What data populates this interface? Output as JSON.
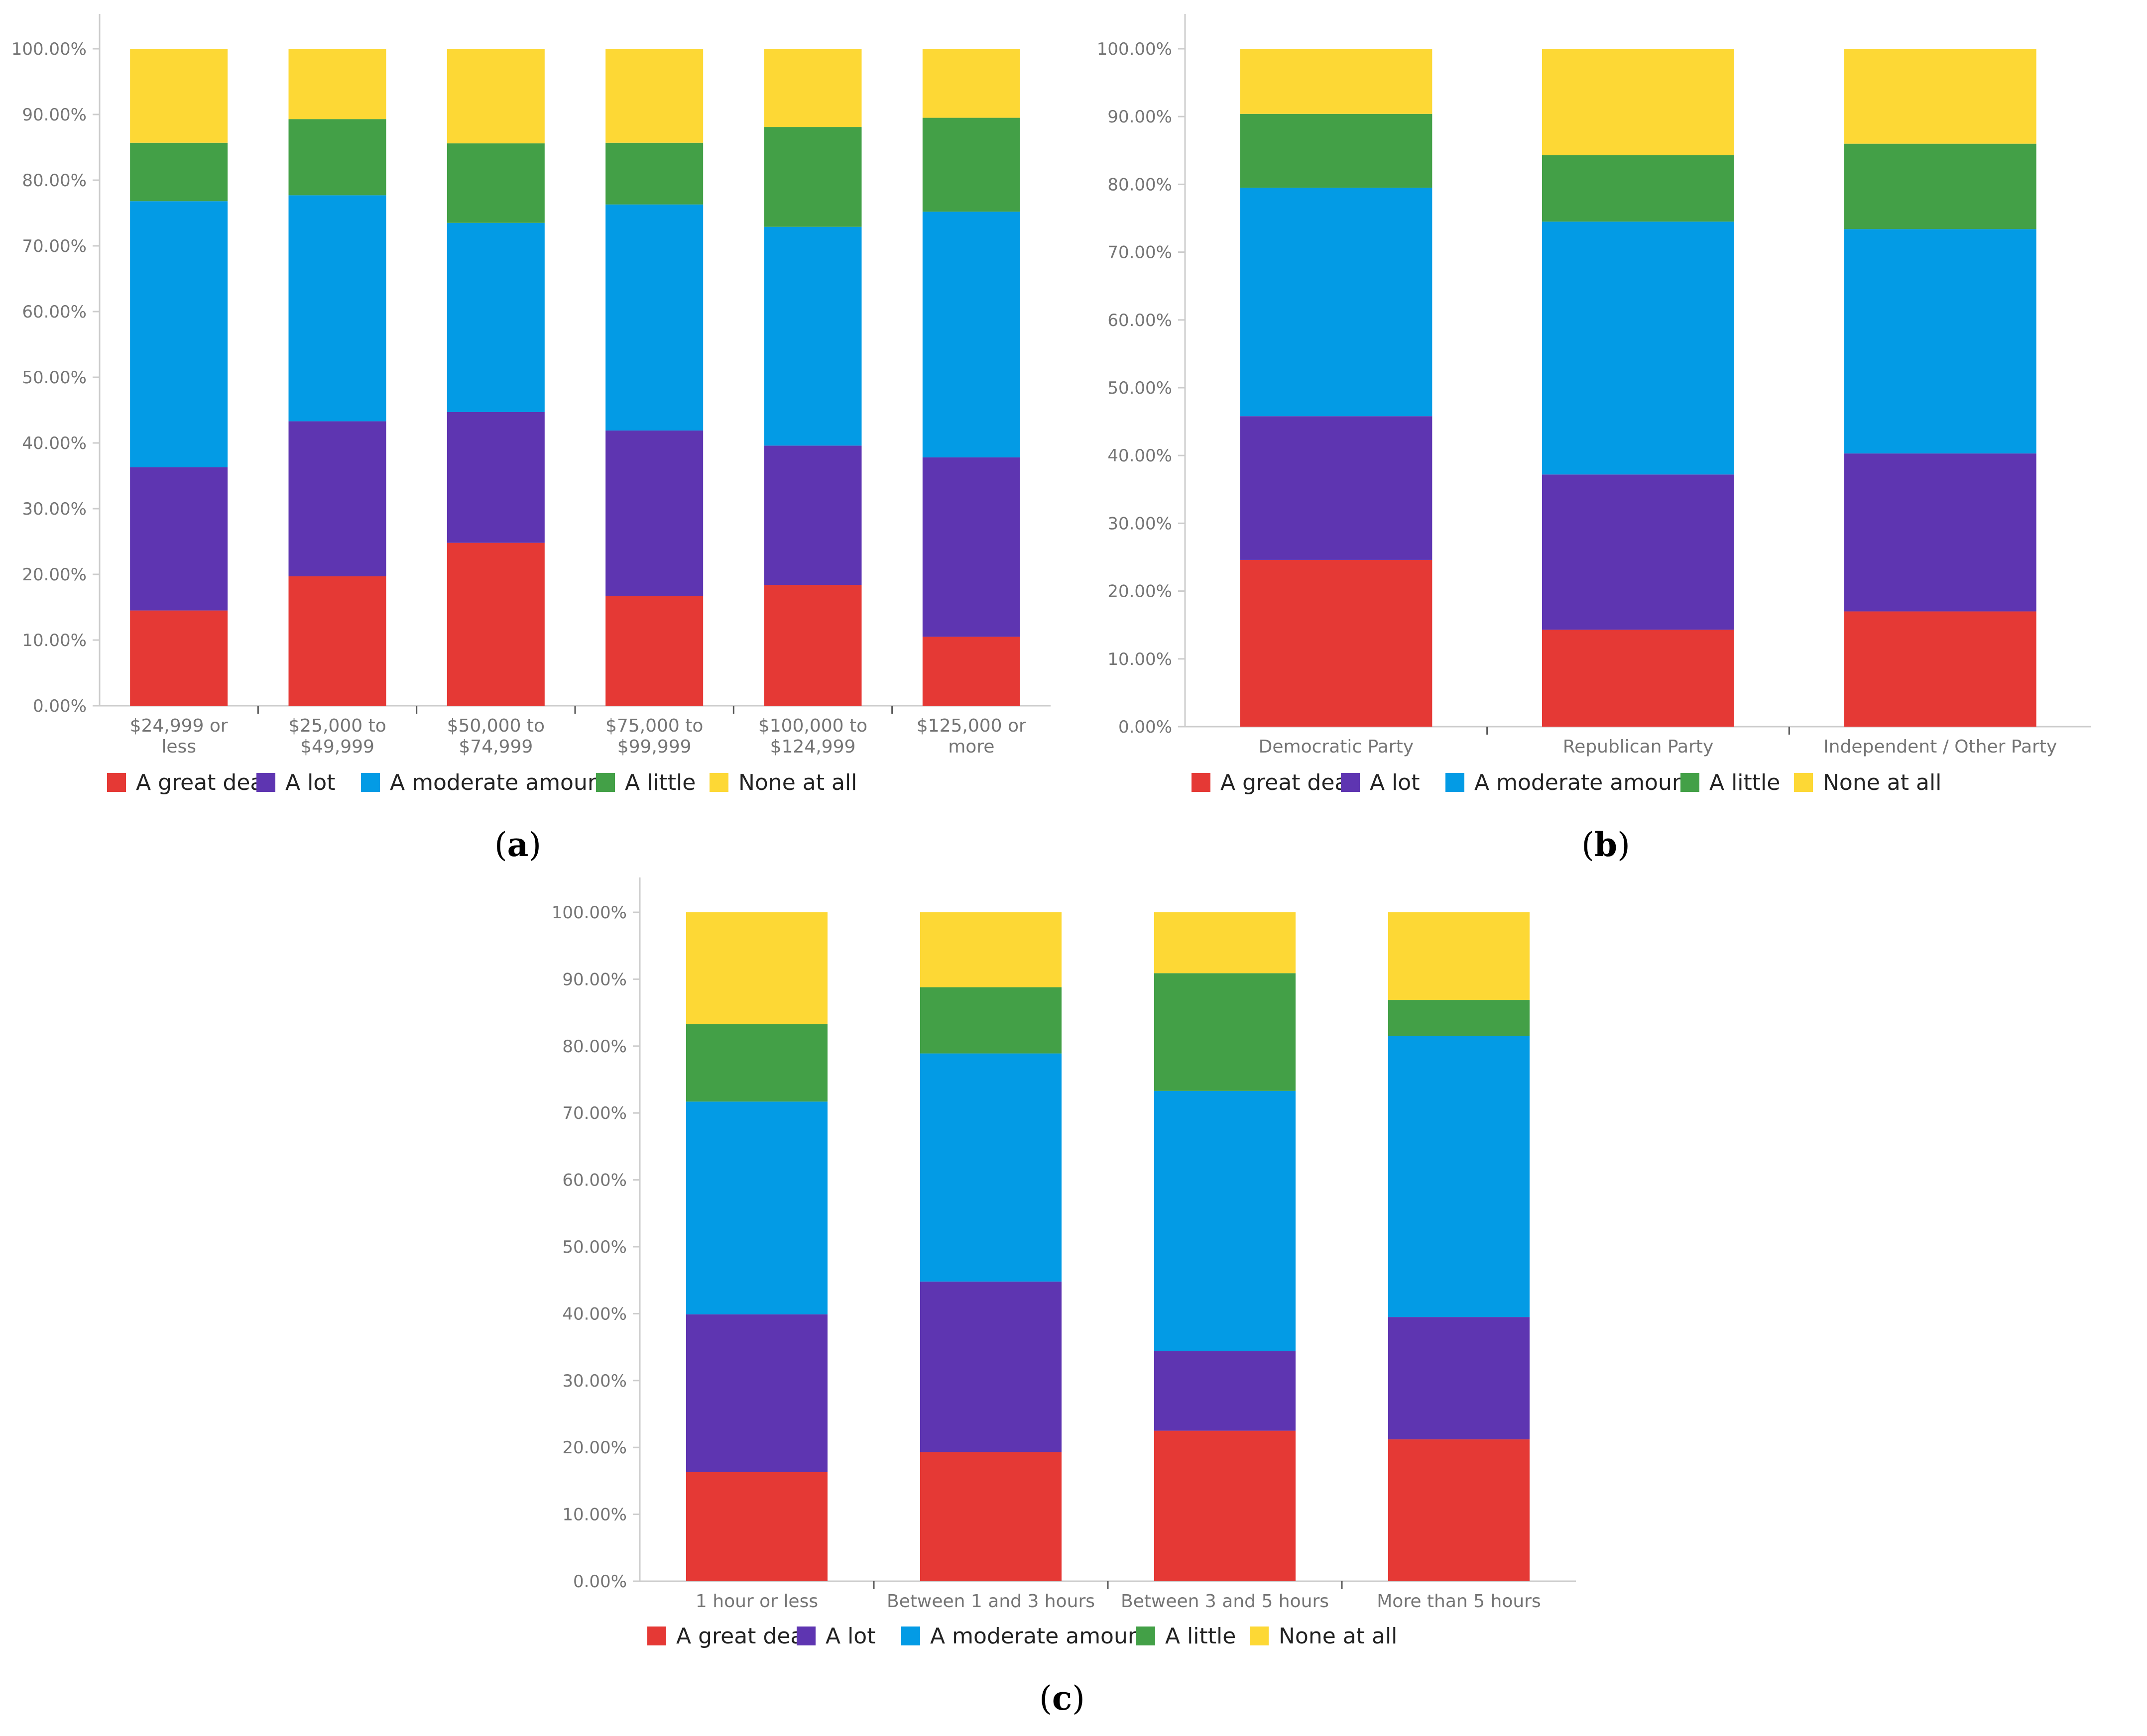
{
  "colors": {
    "A great deal": "#e53935",
    "A lot": "#5e35b1",
    "A moderate amount": "#039be5",
    "A little": "#43a047",
    "None at all": "#fdd835"
  },
  "legend": [
    "A great deal",
    "A lot",
    "A moderate amount",
    "A little",
    "None at all"
  ],
  "y_ticks": [
    "0.00%",
    "10.00%",
    "20.00%",
    "30.00%",
    "40.00%",
    "50.00%",
    "60.00%",
    "70.00%",
    "80.00%",
    "90.00%",
    "100.00%"
  ],
  "chart_data": [
    {
      "type": "bar",
      "stacked": true,
      "panel_label": "a",
      "categories": [
        [
          "$24,999 or",
          "less"
        ],
        [
          "$25,000 to",
          "$49,999"
        ],
        [
          "$50,000 to",
          "$74,999"
        ],
        [
          "$75,000 to",
          "$99,999"
        ],
        [
          "$100,000 to",
          "$124,999"
        ],
        [
          "$125,000 or",
          "more"
        ]
      ],
      "series": [
        {
          "name": "A great deal",
          "values": [
            14.5,
            19.7,
            24.8,
            16.7,
            18.4,
            10.5
          ]
        },
        {
          "name": "A lot",
          "values": [
            21.8,
            23.6,
            19.9,
            25.2,
            21.2,
            27.3
          ]
        },
        {
          "name": "A moderate amount",
          "values": [
            40.5,
            34.4,
            28.8,
            34.4,
            33.3,
            37.4
          ]
        },
        {
          "name": "A little",
          "values": [
            8.9,
            11.6,
            12.1,
            9.4,
            15.2,
            14.3
          ]
        },
        {
          "name": "None at all",
          "values": [
            14.3,
            10.7,
            14.4,
            14.3,
            11.9,
            10.5
          ]
        }
      ],
      "ylim": [
        0,
        100
      ]
    },
    {
      "type": "bar",
      "stacked": true,
      "panel_label": "b",
      "categories": [
        [
          "Democratic Party"
        ],
        [
          "Republican Party"
        ],
        [
          "Independent / Other Party"
        ]
      ],
      "series": [
        {
          "name": "A great deal",
          "values": [
            24.6,
            14.3,
            17.0
          ]
        },
        {
          "name": "A lot",
          "values": [
            21.2,
            22.9,
            23.3
          ]
        },
        {
          "name": "A moderate amount",
          "values": [
            33.7,
            37.3,
            33.1
          ]
        },
        {
          "name": "A little",
          "values": [
            10.9,
            9.8,
            12.6
          ]
        },
        {
          "name": "None at all",
          "values": [
            9.6,
            15.7,
            14.0
          ]
        }
      ],
      "ylim": [
        0,
        100
      ]
    },
    {
      "type": "bar",
      "stacked": true,
      "panel_label": "c",
      "categories": [
        [
          "1 hour or less"
        ],
        [
          "Between 1 and 3 hours"
        ],
        [
          "Between 3 and 5 hours"
        ],
        [
          "More than 5 hours"
        ]
      ],
      "series": [
        {
          "name": "A great deal",
          "values": [
            16.3,
            19.3,
            22.5,
            21.2
          ]
        },
        {
          "name": "A lot",
          "values": [
            23.6,
            25.5,
            11.9,
            18.3
          ]
        },
        {
          "name": "A moderate amount",
          "values": [
            31.8,
            34.1,
            38.9,
            42.0
          ]
        },
        {
          "name": "A little",
          "values": [
            11.6,
            9.9,
            17.6,
            5.4
          ]
        },
        {
          "name": "None at all",
          "values": [
            16.7,
            11.2,
            9.1,
            13.1
          ]
        }
      ],
      "ylim": [
        0,
        100
      ]
    }
  ]
}
